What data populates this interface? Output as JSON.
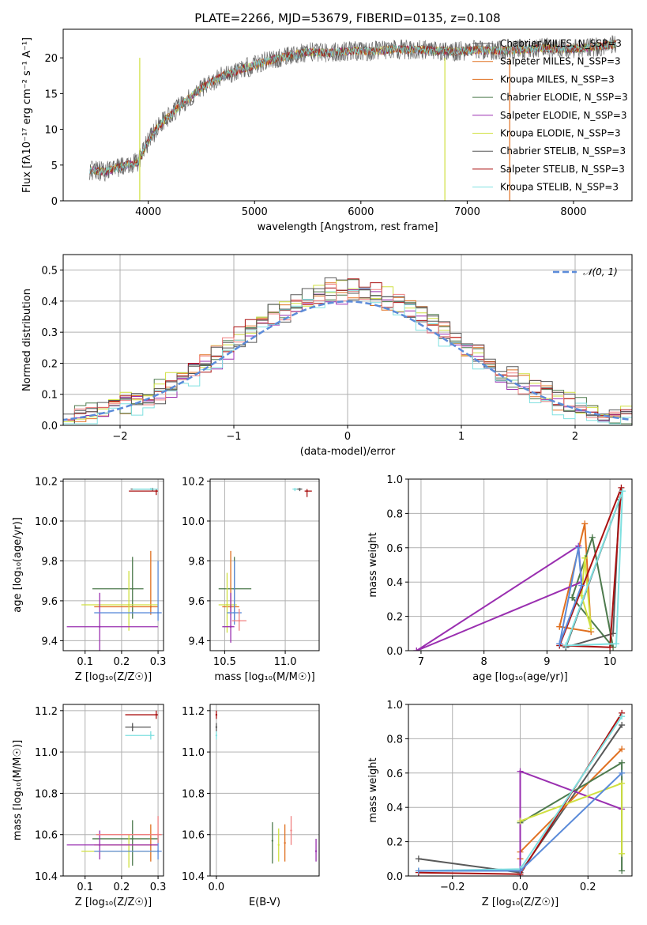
{
  "figure": {
    "title": "PLATE=2266, MJD=53679, FIBERID=0135, z=0.108"
  },
  "colors": {
    "grid": "#b0b0b0",
    "series": [
      "#595959",
      "#e07020",
      "#e07020",
      "#4d7a4d",
      "#9a2fb0",
      "#d0e040",
      "#555555",
      "#aa1111",
      "#7fe0e0"
    ],
    "normal": "#5b8bd9"
  },
  "chart_data": [
    {
      "id": "spectrum",
      "type": "line",
      "xlabel": "wavelength [Angstrom, rest frame]",
      "ylabel": "Flux [fλ10⁻¹⁷ erg cm⁻² s⁻¹ A⁻¹]",
      "xlim": [
        3200,
        8550
      ],
      "ylim": [
        0,
        24
      ],
      "xticks": [
        4000,
        5000,
        6000,
        7000,
        8000
      ],
      "yticks": [
        0,
        5,
        10,
        15,
        20
      ],
      "legend_position": "right",
      "legend": [
        {
          "label": "Chabrier MILES, N_SSP=3",
          "color": "#595959"
        },
        {
          "label": "Salpeter MILES, N_SSP=3",
          "color": "#e07020"
        },
        {
          "label": "Kroupa MILES, N_SSP=3",
          "color": "#e07020"
        },
        {
          "label": "Chabrier ELODIE, N_SSP=3",
          "color": "#4d7a4d"
        },
        {
          "label": "Salpeter ELODIE, N_SSP=3",
          "color": "#9a2fb0"
        },
        {
          "label": "Kroupa ELODIE, N_SSP=3",
          "color": "#d0e040"
        },
        {
          "label": "Chabrier STELIB, N_SSP=3",
          "color": "#555555"
        },
        {
          "label": "Salpeter STELIB, N_SSP=3",
          "color": "#aa1111"
        },
        {
          "label": "Kroupa STELIB, N_SSP=3",
          "color": "#7fe0e0"
        }
      ],
      "continuum": {
        "x": [
          3450,
          3600,
          3750,
          3900,
          4000,
          4100,
          4300,
          4500,
          4700,
          4900,
          5100,
          5300,
          5500,
          5700,
          5900,
          6100,
          6300,
          6500,
          6700,
          6900,
          7100,
          7300,
          7500,
          7700,
          7900,
          8100,
          8300,
          8400
        ],
        "y": [
          4.3,
          4.1,
          4.8,
          5.4,
          8.3,
          10.5,
          13.3,
          15.8,
          17.5,
          18.5,
          19.5,
          20.2,
          20.8,
          20.7,
          21.0,
          20.9,
          21.2,
          21.1,
          21.0,
          20.9,
          21.1,
          21.0,
          21.1,
          21.4,
          21.2,
          21.4,
          21.7,
          22.0
        ]
      },
      "dropouts": [
        {
          "x": 3920,
          "color": "#d0e040"
        },
        {
          "x": 6790,
          "color": "#d0e040"
        },
        {
          "x": 7400,
          "color": "#e07020"
        }
      ]
    },
    {
      "id": "residuals",
      "type": "histogram",
      "xlabel": "(data-model)/error",
      "ylabel": "Normed distribution",
      "xlim": [
        -2.5,
        2.5
      ],
      "ylim": [
        0,
        0.55
      ],
      "xticks": [
        -2,
        -1,
        0,
        1,
        2
      ],
      "yticks": [
        0.0,
        0.1,
        0.2,
        0.3,
        0.4,
        0.5
      ],
      "legend_position": "top-right",
      "normal_label": "𝒩(0, 1)",
      "bin_width": 0.1,
      "bin_start": -2.5,
      "envelope": [
        0.02,
        0.02,
        0.03,
        0.04,
        0.05,
        0.05,
        0.06,
        0.07,
        0.08,
        0.09,
        0.1,
        0.11,
        0.12,
        0.13,
        0.15,
        0.17,
        0.19,
        0.21,
        0.22,
        0.24,
        0.26,
        0.28,
        0.3,
        0.32,
        0.34,
        0.36,
        0.37,
        0.39,
        0.4,
        0.41,
        0.42,
        0.43,
        0.43,
        0.44,
        0.43,
        0.43,
        0.42,
        0.41,
        0.4,
        0.39,
        0.37,
        0.35,
        0.33,
        0.31,
        0.3,
        0.28,
        0.26,
        0.24,
        0.22,
        0.2,
        0.18,
        0.16,
        0.14,
        0.12,
        0.11,
        0.1,
        0.09,
        0.08,
        0.07,
        0.06,
        0.05,
        0.04,
        0.04,
        0.03,
        0.03,
        0.03,
        0.02,
        0.02,
        0.02,
        0.02,
        0.02,
        0.02,
        0.02,
        0.01,
        0.01,
        0.01,
        0.01,
        0.01,
        0.01,
        0.01,
        0.01,
        0.01,
        0.01,
        0.01,
        0.01,
        0.01,
        0.01,
        0.01,
        0.01,
        0.01
      ],
      "offsets": [
        0.0,
        0.02,
        -0.03,
        0.04,
        -0.02,
        0.03,
        -0.04,
        0.01,
        0.05
      ]
    },
    {
      "id": "age-vs-Z",
      "type": "scatter",
      "xlabel": "Z [log₁₀(Z/Z☉)]",
      "ylabel": "age  [log₁₀(age/yr)]",
      "xlim": [
        0.04,
        0.315
      ],
      "ylim": [
        9.35,
        10.21
      ],
      "xticks": [
        0.1,
        0.2,
        0.3
      ],
      "yticks": [
        9.4,
        9.6,
        9.8,
        10.0,
        10.2
      ],
      "points": [
        {
          "x": 0.285,
          "y": 10.16,
          "xerr": [
            0.225,
            0.29
          ],
          "yerr": [
            10.15,
            10.165
          ],
          "color": "#595959"
        },
        {
          "x": 0.295,
          "y": 10.15,
          "xerr": [
            0.22,
            0.3
          ],
          "yerr": [
            10.13,
            10.16
          ],
          "color": "#aa1111"
        },
        {
          "x": 0.23,
          "y": 9.66,
          "xerr": [
            0.12,
            0.26
          ],
          "yerr": [
            9.51,
            9.82
          ],
          "color": "#4d7a4d"
        },
        {
          "x": 0.28,
          "y": 9.57,
          "xerr": [
            0.125,
            0.3
          ],
          "yerr": [
            9.53,
            9.85
          ],
          "color": "#e07020"
        },
        {
          "x": 0.22,
          "y": 9.58,
          "xerr": [
            0.09,
            0.3
          ],
          "yerr": [
            9.45,
            9.75
          ],
          "color": "#d0e040"
        },
        {
          "x": 0.14,
          "y": 9.47,
          "xerr": [
            0.05,
            0.3
          ],
          "yerr": [
            9.35,
            9.64
          ],
          "color": "#9a2fb0"
        },
        {
          "x": 0.3,
          "y": 9.54,
          "xerr": [
            0.125,
            0.31
          ],
          "yerr": [
            9.5,
            9.8
          ],
          "color": "#5b8bd9"
        },
        {
          "x": 0.28,
          "y": 10.16,
          "xerr": [
            0.23,
            0.3
          ],
          "yerr": [
            10.155,
            10.165
          ],
          "color": "#7fe0e0"
        }
      ]
    },
    {
      "id": "age-vs-mass",
      "type": "scatter",
      "xlabel": "mass [log₁₀(M/M☉)]",
      "ylabel": "",
      "xlim": [
        10.38,
        11.28
      ],
      "ylim": [
        9.35,
        10.21
      ],
      "xticks": [
        10.5,
        11.0
      ],
      "yticks": [
        9.4,
        9.6,
        9.8,
        10.0,
        10.2
      ],
      "points": [
        {
          "x": 11.12,
          "y": 10.16,
          "xerr": [
            11.09,
            11.14
          ],
          "yerr": [
            10.15,
            10.165
          ],
          "color": "#595959"
        },
        {
          "x": 11.18,
          "y": 10.15,
          "xerr": [
            11.16,
            11.22
          ],
          "yerr": [
            10.12,
            10.16
          ],
          "color": "#aa1111"
        },
        {
          "x": 11.08,
          "y": 10.16,
          "xerr": [
            11.06,
            11.1
          ],
          "yerr": [
            10.15,
            10.165
          ],
          "color": "#7fe0e0"
        },
        {
          "x": 10.58,
          "y": 9.66,
          "xerr": [
            10.45,
            10.72
          ],
          "yerr": [
            9.5,
            9.82
          ],
          "color": "#4d7a4d"
        },
        {
          "x": 10.55,
          "y": 9.57,
          "xerr": [
            10.48,
            10.62
          ],
          "yerr": [
            9.53,
            9.85
          ],
          "color": "#e07020"
        },
        {
          "x": 10.52,
          "y": 9.58,
          "xerr": [
            10.45,
            10.6
          ],
          "yerr": [
            9.44,
            9.74
          ],
          "color": "#d0e040"
        },
        {
          "x": 10.55,
          "y": 9.47,
          "xerr": [
            10.48,
            10.58
          ],
          "yerr": [
            9.39,
            9.64
          ],
          "color": "#9a2fb0"
        },
        {
          "x": 10.58,
          "y": 9.54,
          "xerr": [
            10.52,
            10.64
          ],
          "yerr": [
            9.48,
            9.8
          ],
          "color": "#5b8bd9"
        },
        {
          "x": 10.62,
          "y": 9.5,
          "xerr": [
            10.56,
            10.68
          ],
          "yerr": [
            9.45,
            9.56
          ],
          "color": "#f08080"
        }
      ]
    },
    {
      "id": "mass-weight-vs-age",
      "type": "line",
      "xlabel": "age  [log₁₀(age/yr)]",
      "ylabel": "mass weight",
      "xlim": [
        6.8,
        10.35
      ],
      "ylim": [
        0,
        1.0
      ],
      "xticks": [
        7,
        8,
        9,
        10
      ],
      "yticks": [
        0.0,
        0.2,
        0.4,
        0.6,
        0.8,
        1.0
      ],
      "series": [
        {
          "color": "#595959",
          "x": [
            9.3,
            10.05,
            10.15,
            9.3
          ],
          "y": [
            0.02,
            0.1,
            0.88,
            0.02
          ]
        },
        {
          "color": "#e07020",
          "x": [
            9.2,
            9.6,
            9.7,
            9.2
          ],
          "y": [
            0.14,
            0.74,
            0.11,
            0.14
          ]
        },
        {
          "color": "#4d7a4d",
          "x": [
            9.4,
            9.72,
            10.05,
            9.4
          ],
          "y": [
            0.31,
            0.66,
            0.02,
            0.31
          ]
        },
        {
          "color": "#9a2fb0",
          "x": [
            6.93,
            9.5,
            9.55,
            6.93
          ],
          "y": [
            0.0,
            0.61,
            0.4,
            0.0
          ]
        },
        {
          "color": "#d0e040",
          "x": [
            9.55,
            9.6,
            9.7,
            9.55
          ],
          "y": [
            0.32,
            0.54,
            0.13,
            0.32
          ]
        },
        {
          "color": "#aa1111",
          "x": [
            9.2,
            10.0,
            10.18,
            9.2
          ],
          "y": [
            0.03,
            0.02,
            0.95,
            0.03
          ]
        },
        {
          "color": "#7fe0e0",
          "x": [
            9.3,
            10.1,
            10.2,
            9.3
          ],
          "y": [
            0.03,
            0.04,
            0.93,
            0.03
          ]
        },
        {
          "color": "#5b8bd9",
          "x": [
            9.2,
            9.5,
            9.55,
            9.2
          ],
          "y": [
            0.04,
            0.6,
            0.38,
            0.04
          ]
        }
      ]
    },
    {
      "id": "mass-vs-Z",
      "type": "scatter",
      "xlabel": "Z [log₁₀(Z/Z☉)]",
      "ylabel": "mass [log₁₀(M/M☉)]",
      "xlim": [
        0.04,
        0.315
      ],
      "ylim": [
        10.4,
        11.23
      ],
      "xticks": [
        0.1,
        0.2,
        0.3
      ],
      "yticks": [
        10.4,
        10.6,
        10.8,
        11.0,
        11.2
      ],
      "points": [
        {
          "x": 0.295,
          "y": 11.18,
          "xerr": [
            0.21,
            0.3
          ],
          "yerr": [
            11.16,
            11.2
          ],
          "color": "#aa1111"
        },
        {
          "x": 0.23,
          "y": 11.12,
          "xerr": [
            0.21,
            0.28
          ],
          "yerr": [
            11.1,
            11.14
          ],
          "color": "#595959"
        },
        {
          "x": 0.28,
          "y": 11.08,
          "xerr": [
            0.21,
            0.29
          ],
          "yerr": [
            11.06,
            11.1
          ],
          "color": "#7fe0e0"
        },
        {
          "x": 0.23,
          "y": 10.58,
          "xerr": [
            0.12,
            0.3
          ],
          "yerr": [
            10.45,
            10.67
          ],
          "color": "#4d7a4d"
        },
        {
          "x": 0.28,
          "y": 10.55,
          "xerr": [
            0.125,
            0.3
          ],
          "yerr": [
            10.47,
            10.65
          ],
          "color": "#e07020"
        },
        {
          "x": 0.22,
          "y": 10.52,
          "xerr": [
            0.09,
            0.3
          ],
          "yerr": [
            10.44,
            10.6
          ],
          "color": "#d0e040"
        },
        {
          "x": 0.14,
          "y": 10.55,
          "xerr": [
            0.05,
            0.3
          ],
          "yerr": [
            10.48,
            10.62
          ],
          "color": "#9a2fb0"
        },
        {
          "x": 0.3,
          "y": 10.52,
          "xerr": [
            0.125,
            0.31
          ],
          "yerr": [
            10.48,
            10.6
          ],
          "color": "#5b8bd9"
        },
        {
          "x": 0.3,
          "y": 10.6,
          "xerr": [
            0.13,
            0.31
          ],
          "yerr": [
            10.56,
            10.69
          ],
          "color": "#f08080"
        }
      ]
    },
    {
      "id": "mass-vs-EBV",
      "type": "scatter",
      "xlabel": "E(B-V)",
      "ylabel": "",
      "xlim": [
        -0.01,
        0.165
      ],
      "ylim": [
        10.4,
        11.23
      ],
      "xticks": [
        0.0
      ],
      "yticks": [
        10.4,
        10.6,
        10.8,
        11.0,
        11.2
      ],
      "points": [
        {
          "x": 0.0,
          "y": 11.18,
          "yerr": [
            11.16,
            11.2
          ],
          "color": "#aa1111"
        },
        {
          "x": 0.0,
          "y": 11.12,
          "yerr": [
            11.1,
            11.14
          ],
          "color": "#595959"
        },
        {
          "x": 0.0,
          "y": 11.08,
          "yerr": [
            11.06,
            11.1
          ],
          "color": "#7fe0e0"
        },
        {
          "x": 0.09,
          "y": 10.57,
          "yerr": [
            10.46,
            10.66
          ],
          "color": "#4d7a4d"
        },
        {
          "x": 0.1,
          "y": 10.55,
          "yerr": [
            10.47,
            10.63
          ],
          "color": "#d0e040"
        },
        {
          "x": 0.11,
          "y": 10.56,
          "yerr": [
            10.47,
            10.65
          ],
          "color": "#e07020"
        },
        {
          "x": 0.12,
          "y": 10.62,
          "yerr": [
            10.55,
            10.69
          ],
          "color": "#f08080"
        },
        {
          "x": 0.16,
          "y": 10.52,
          "yerr": [
            10.47,
            10.58
          ],
          "color": "#9a2fb0"
        }
      ]
    },
    {
      "id": "mass-weight-vs-Z",
      "type": "line",
      "xlabel": "Z [log₁₀(Z/Z☉)]",
      "ylabel": "mass weight",
      "xlim": [
        -0.33,
        0.33
      ],
      "ylim": [
        0,
        1.0
      ],
      "xticks": [
        -0.2,
        0.0,
        0.2
      ],
      "yticks": [
        0.0,
        0.2,
        0.4,
        0.6,
        0.8,
        1.0
      ],
      "series": [
        {
          "color": "#595959",
          "x": [
            -0.3,
            0.0,
            0.3
          ],
          "y": [
            0.1,
            0.02,
            0.88
          ]
        },
        {
          "color": "#e07020",
          "x": [
            0.0,
            0.0,
            0.3
          ],
          "y": [
            0.1,
            0.14,
            0.74
          ]
        },
        {
          "color": "#4d7a4d",
          "x": [
            0.0,
            0.3,
            0.3
          ],
          "y": [
            0.31,
            0.66,
            0.03
          ]
        },
        {
          "color": "#9a2fb0",
          "x": [
            0.0,
            0.0,
            0.3
          ],
          "y": [
            0.0,
            0.61,
            0.39
          ]
        },
        {
          "color": "#d0e040",
          "x": [
            0.0,
            0.3,
            0.3
          ],
          "y": [
            0.32,
            0.54,
            0.13
          ]
        },
        {
          "color": "#aa1111",
          "x": [
            -0.3,
            0.0,
            0.3
          ],
          "y": [
            0.02,
            0.01,
            0.95
          ]
        },
        {
          "color": "#7fe0e0",
          "x": [
            -0.3,
            0.0,
            0.3
          ],
          "y": [
            0.03,
            0.04,
            0.93
          ]
        },
        {
          "color": "#5b8bd9",
          "x": [
            -0.3,
            0.0,
            0.3
          ],
          "y": [
            0.03,
            0.03,
            0.6
          ]
        }
      ]
    }
  ]
}
